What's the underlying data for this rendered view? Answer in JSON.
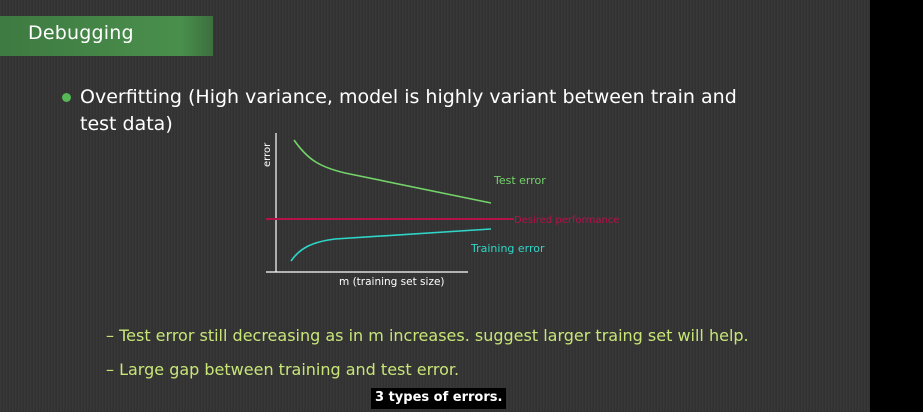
{
  "header": {
    "title": "Debugging"
  },
  "bullet": {
    "text": "Overfitting (High variance, model is highly variant between train and test data)"
  },
  "diagram": {
    "y_axis_label": "error",
    "x_axis_label": "m (training set size)",
    "test_curve_label": "Test error",
    "training_curve_label": "Training error",
    "desired_line_label": "Desired performance",
    "colors": {
      "test": "#74d36a",
      "training": "#2ed6c8",
      "desired": "#b3124a",
      "axis": "#ffffff"
    }
  },
  "points": [
    "– Test error still decreasing as in m increases. suggest larger traing set will help.",
    "– Large gap between training and test error."
  ],
  "caption": "3 types of errors."
}
